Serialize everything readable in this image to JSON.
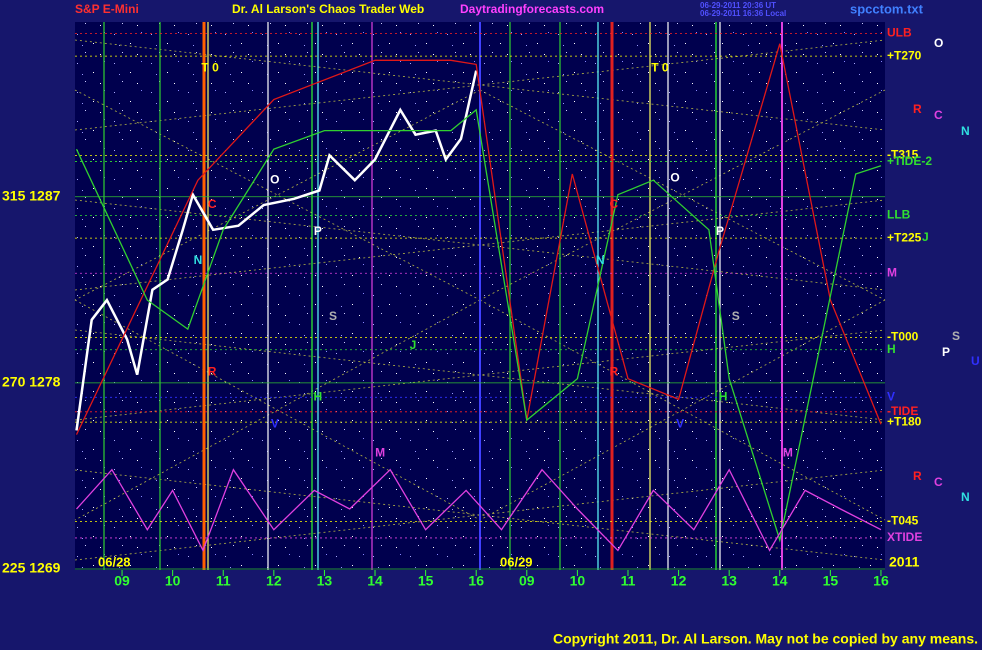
{
  "chart_data": {
    "type": "line",
    "instrument": "S&P E-Mini",
    "title": "Dr. Al Larson's Chaos Trader Web",
    "site": "Daytradingforecasts.com",
    "timestamp_ut": "06-29-2011 20:36 UT",
    "timestamp_local": "06-29-2011 16:36 Local",
    "file": "spcctom.txt",
    "copyright": "Copyright 2011, Dr. Al Larson. May not be copied by any means.",
    "date_labels": [
      "06/28",
      "06/29",
      "2011"
    ],
    "xlim": [
      8.07,
      24.08
    ],
    "xticks": [
      {
        "value": 9,
        "label": "09"
      },
      10,
      11,
      12,
      13,
      14,
      15,
      16,
      {
        "value": 17,
        "label": "09"
      },
      {
        "value": 18,
        "label": "10"
      },
      {
        "value": 19,
        "label": "11"
      },
      {
        "value": 20,
        "label": "12"
      },
      {
        "value": 21,
        "label": "13"
      },
      {
        "value": 22,
        "label": "14"
      },
      {
        "value": 23,
        "label": "15"
      },
      {
        "value": 24,
        "label": "16"
      }
    ],
    "ylim": [
      1268.95,
      1295.45
    ],
    "yticks": [
      {
        "value": 1269,
        "label": "225 1269"
      },
      {
        "value": 1278,
        "label": "270 1278"
      },
      {
        "value": 1287,
        "label": "315 1287"
      }
    ],
    "series": [
      {
        "name": "price",
        "color": "#ffffff",
        "x": [
          8.1,
          8.4,
          8.7,
          9.1,
          9.3,
          9.6,
          9.9,
          10.2,
          10.4,
          10.8,
          11.3,
          11.8,
          12.4,
          12.9,
          13.1,
          13.6,
          14.0,
          14.5,
          14.8,
          15.2,
          15.4,
          15.7,
          16.0
        ],
        "values": [
          1275.7,
          1281.05,
          1282.0,
          1280.1,
          1278.4,
          1282.5,
          1283.0,
          1285.4,
          1287.1,
          1285.4,
          1285.6,
          1286.6,
          1286.9,
          1287.3,
          1289.0,
          1287.8,
          1288.8,
          1291.2,
          1290.0,
          1290.2,
          1288.8,
          1289.8,
          1293.1
        ]
      },
      {
        "name": "red",
        "color": "#e01818",
        "x": [
          8.1,
          10.5,
          12.0,
          14.0,
          15.5,
          16.0,
          17.0,
          17.9,
          19.0,
          20.0,
          20.8,
          22.0,
          23.0,
          24.0
        ],
        "values": [
          1275.5,
          1287.8,
          1291.7,
          1293.6,
          1293.6,
          1293.4,
          1276.2,
          1288.1,
          1278.2,
          1277.2,
          1284.4,
          1294.4,
          1282.0,
          1276.0
        ]
      },
      {
        "name": "green",
        "color": "#30d030",
        "x": [
          8.1,
          9.5,
          10.3,
          11.0,
          12.0,
          13.0,
          14.0,
          15.5,
          16.0,
          17.0,
          18.0,
          18.8,
          19.5,
          20.6,
          21.0,
          22.0,
          23.5,
          24.0
        ],
        "values": [
          1289.3,
          1282.0,
          1280.6,
          1285.4,
          1289.3,
          1290.2,
          1290.2,
          1290.2,
          1291.2,
          1276.2,
          1278.2,
          1287.1,
          1287.8,
          1285.4,
          1278.2,
          1270.4,
          1288.1,
          1288.5
        ]
      },
      {
        "name": "xtide",
        "color": "#e040e0",
        "x": [
          8.1,
          8.8,
          9.5,
          10.0,
          10.6,
          11.2,
          12.0,
          12.8,
          13.5,
          14.3,
          15.0,
          15.8,
          16.5,
          17.3,
          18.0,
          18.8,
          19.5,
          20.3,
          21.0,
          21.8,
          22.5,
          23.2,
          24.0
        ],
        "values": [
          1271.9,
          1273.8,
          1270.9,
          1272.8,
          1269.9,
          1273.8,
          1270.9,
          1272.8,
          1271.9,
          1273.8,
          1270.9,
          1272.8,
          1270.9,
          1273.8,
          1271.9,
          1269.9,
          1272.8,
          1270.9,
          1273.8,
          1269.9,
          1272.8,
          1271.9,
          1270.9
        ]
      }
    ],
    "annotations": [
      {
        "text": "T  0",
        "color": "#ffff00",
        "x": 10.74,
        "y": 1293.2
      },
      {
        "text": "O",
        "color": "#ffffff",
        "x": 12.02,
        "y": 1287.8
      },
      {
        "text": "C",
        "color": "#ff2020",
        "x": 10.78,
        "y": 1286.6
      },
      {
        "text": "N",
        "color": "#30e0e0",
        "x": 10.5,
        "y": 1283.9
      },
      {
        "text": "P",
        "color": "#ffffff",
        "x": 12.87,
        "y": 1285.3
      },
      {
        "text": "S",
        "color": "#b0b0b0",
        "x": 13.17,
        "y": 1281.2
      },
      {
        "text": "R",
        "color": "#ff2020",
        "x": 10.78,
        "y": 1278.5
      },
      {
        "text": "V",
        "color": "#3030ff",
        "x": 12.02,
        "y": 1276.0
      },
      {
        "text": "H",
        "color": "#30e030",
        "x": 12.87,
        "y": 1277.3
      },
      {
        "text": "M",
        "color": "#e040e0",
        "x": 14.1,
        "y": 1274.6
      },
      {
        "text": "J",
        "color": "#30e030",
        "x": 14.75,
        "y": 1279.8
      },
      {
        "text": "T  0",
        "color": "#ffff00",
        "x": 19.63,
        "y": 1293.2
      },
      {
        "text": "O",
        "color": "#ffffff",
        "x": 19.93,
        "y": 1287.9
      },
      {
        "text": "C",
        "color": "#ff2020",
        "x": 18.72,
        "y": 1286.6
      },
      {
        "text": "N",
        "color": "#30e0e0",
        "x": 18.45,
        "y": 1283.9
      },
      {
        "text": "P",
        "color": "#ffffff",
        "x": 20.82,
        "y": 1285.3
      },
      {
        "text": "S",
        "color": "#b0b0b0",
        "x": 21.13,
        "y": 1281.2
      },
      {
        "text": "H",
        "color": "#30e030",
        "x": 20.88,
        "y": 1277.3
      },
      {
        "text": "V",
        "color": "#3030ff",
        "x": 20.03,
        "y": 1276.0
      },
      {
        "text": "M",
        "color": "#e040e0",
        "x": 22.16,
        "y": 1274.6
      },
      {
        "text": "R",
        "color": "#ff2020",
        "x": 18.72,
        "y": 1278.5
      }
    ],
    "levels": [
      {
        "text": "ULB",
        "color": "#ff2020",
        "y": 1294.9
      },
      {
        "text": "+T270",
        "color": "#ffff00",
        "y": 1293.8
      },
      {
        "text": "-T315",
        "color": "#ffff00",
        "y": 1289.0
      },
      {
        "text": "+TIDE-2",
        "color": "#30e030",
        "y": 1288.7
      },
      {
        "text": "LLB",
        "color": "#30e030",
        "y": 1286.1
      },
      {
        "text": "+T225",
        "color": "#ffff00",
        "y": 1285.0
      },
      {
        "text": "M",
        "color": "#e040e0",
        "y": 1283.3
      },
      {
        "text": "-T000",
        "color": "#ffff00",
        "y": 1280.2
      },
      {
        "text": "H",
        "color": "#30e030",
        "y": 1279.6
      },
      {
        "text": "V",
        "color": "#3030ff",
        "y": 1277.3
      },
      {
        "text": "-TIDE",
        "color": "#ff2020",
        "y": 1276.6
      },
      {
        "text": "+T180",
        "color": "#ffff00",
        "y": 1276.1
      },
      {
        "text": "-T045",
        "color": "#ffff00",
        "y": 1271.3
      },
      {
        "text": "XTIDE",
        "color": "#e040e0",
        "y": 1270.5
      }
    ],
    "side_letters": [
      "O",
      "R",
      "C",
      "N",
      "J",
      "S",
      "P",
      "U",
      "R",
      "C",
      "N"
    ]
  }
}
